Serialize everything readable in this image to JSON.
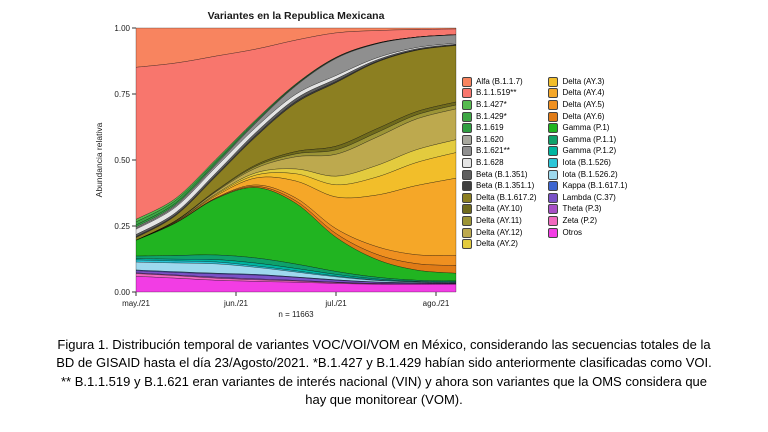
{
  "figure": {
    "caption": "Figura 1. Distribución temporal de variantes VOC/VOI/VOM en México, considerando las secuencias totales de la BD de GISAID hasta el día 23/Agosto/2021. *B.1.427 y B.1.429 habían sido anteriormente clasificadas como VOI. ** B.1.1.519 y B.1.621 eran variantes de interés nacional (VIN) y ahora son variantes que la OMS considera que hay que monitorear (VOM)."
  },
  "chart_data": {
    "type": "area",
    "variant": "stacked-normalized",
    "stack_order": "first-series-on-top",
    "title": "Variantes en la Republica Mexicana",
    "xlabel": "",
    "ylabel": "Abundancia relativa",
    "sample_label": "n = 11663",
    "x_tick_labels": [
      "may./21",
      "jun./21",
      "jul./21",
      "ago./21"
    ],
    "x_tick_positions": [
      0,
      1,
      2,
      3
    ],
    "y_tick_labels": [
      "0.00",
      "0.25",
      "0.50",
      "0.75",
      "1.00"
    ],
    "ylim": [
      0,
      1
    ],
    "grid": false,
    "legend_position": "right",
    "x": [
      0,
      0.4,
      0.8,
      1.2,
      1.6,
      2.0,
      2.4,
      2.8,
      3.2
    ],
    "series": [
      {
        "name": "Alfa (B.1.1.7)",
        "color": "#F8845F",
        "values": [
          0.15,
          0.14,
          0.12,
          0.09,
          0.05,
          0.02,
          0.01,
          0.006,
          0.004
        ]
      },
      {
        "name": "B.1.1.519**",
        "color": "#F8766D",
        "values": [
          0.58,
          0.54,
          0.44,
          0.3,
          0.18,
          0.1,
          0.05,
          0.03,
          0.022
        ]
      },
      {
        "name": "B.1.427*",
        "color": "#56BB4E",
        "values": [
          0.01,
          0.008,
          0.006,
          0.004,
          0.002,
          0.001,
          0.001,
          0.0,
          0.0
        ]
      },
      {
        "name": "B.1.429*",
        "color": "#3DA644",
        "values": [
          0.012,
          0.01,
          0.007,
          0.004,
          0.002,
          0.001,
          0.0,
          0.0,
          0.0
        ]
      },
      {
        "name": "B.1.619",
        "color": "#2F9E41",
        "values": [
          0.008,
          0.007,
          0.006,
          0.004,
          0.002,
          0.001,
          0.001,
          0.0,
          0.0
        ]
      },
      {
        "name": "B.1.620",
        "color": "#A8A89E",
        "values": [
          0.004,
          0.004,
          0.004,
          0.003,
          0.002,
          0.002,
          0.001,
          0.001,
          0.001
        ]
      },
      {
        "name": "B.1.621**",
        "color": "#8F8F8F",
        "values": [
          0.004,
          0.006,
          0.01,
          0.018,
          0.035,
          0.07,
          0.055,
          0.04,
          0.032
        ]
      },
      {
        "name": "B.1.628",
        "color": "#E4E4E4",
        "values": [
          0.02,
          0.022,
          0.025,
          0.022,
          0.018,
          0.014,
          0.008,
          0.005,
          0.004
        ]
      },
      {
        "name": "Beta (B.1.351)",
        "color": "#5E5E5E",
        "values": [
          0.008,
          0.008,
          0.01,
          0.012,
          0.012,
          0.01,
          0.006,
          0.004,
          0.003
        ]
      },
      {
        "name": "Beta (B.1.351.1)",
        "color": "#3F3F3F",
        "values": [
          0.004,
          0.004,
          0.005,
          0.006,
          0.006,
          0.005,
          0.003,
          0.002,
          0.002
        ]
      },
      {
        "name": "Delta (B.1.617.2)",
        "color": "#8C7F21",
        "values": [
          0.01,
          0.02,
          0.06,
          0.12,
          0.2,
          0.26,
          0.26,
          0.24,
          0.22
        ]
      },
      {
        "name": "Delta (AY.10)",
        "color": "#6F6A1C",
        "values": [
          0.0,
          0.001,
          0.003,
          0.006,
          0.01,
          0.015,
          0.015,
          0.013,
          0.012
        ]
      },
      {
        "name": "Delta (AY.11)",
        "color": "#9C9436",
        "values": [
          0.0,
          0.001,
          0.003,
          0.008,
          0.012,
          0.018,
          0.018,
          0.016,
          0.015
        ]
      },
      {
        "name": "Delta (AY.12)",
        "color": "#BDA94E",
        "values": [
          0.0,
          0.002,
          0.008,
          0.02,
          0.05,
          0.09,
          0.11,
          0.12,
          0.12
        ]
      },
      {
        "name": "Delta (AY.2)",
        "color": "#E3CB3E",
        "values": [
          0.0,
          0.001,
          0.004,
          0.01,
          0.02,
          0.035,
          0.045,
          0.05,
          0.05
        ]
      },
      {
        "name": "Delta (AY.3)",
        "color": "#F2BE2A",
        "values": [
          0.0,
          0.001,
          0.005,
          0.012,
          0.03,
          0.05,
          0.07,
          0.09,
          0.1
        ]
      },
      {
        "name": "Delta (AY.4)",
        "color": "#F5A728",
        "values": [
          0.0,
          0.002,
          0.008,
          0.03,
          0.07,
          0.13,
          0.2,
          0.27,
          0.3
        ]
      },
      {
        "name": "Delta (AY.5)",
        "color": "#EF9020",
        "values": [
          0.0,
          0.001,
          0.002,
          0.006,
          0.012,
          0.02,
          0.03,
          0.035,
          0.04
        ]
      },
      {
        "name": "Delta (AY.6)",
        "color": "#E07B17",
        "values": [
          0.0,
          0.001,
          0.002,
          0.005,
          0.01,
          0.015,
          0.02,
          0.025,
          0.03
        ]
      },
      {
        "name": "Gamma (P.1)",
        "color": "#21B421",
        "values": [
          0.06,
          0.13,
          0.24,
          0.3,
          0.25,
          0.14,
          0.07,
          0.04,
          0.03
        ]
      },
      {
        "name": "Gamma (P.1.1)",
        "color": "#0FA16B",
        "values": [
          0.01,
          0.015,
          0.02,
          0.022,
          0.018,
          0.012,
          0.007,
          0.004,
          0.003
        ]
      },
      {
        "name": "Gamma (P.1.2)",
        "color": "#00B5A0",
        "values": [
          0.005,
          0.007,
          0.01,
          0.012,
          0.01,
          0.007,
          0.004,
          0.002,
          0.002
        ]
      },
      {
        "name": "Iota (B.1.526)",
        "color": "#2BC6D8",
        "values": [
          0.008,
          0.008,
          0.008,
          0.006,
          0.005,
          0.003,
          0.002,
          0.001,
          0.001
        ]
      },
      {
        "name": "Iota (B.1.526.2)",
        "color": "#9ED9EE",
        "values": [
          0.03,
          0.035,
          0.04,
          0.03,
          0.02,
          0.012,
          0.006,
          0.003,
          0.002
        ]
      },
      {
        "name": "Kappa (B.1.617.1)",
        "color": "#3E66D0",
        "values": [
          0.003,
          0.003,
          0.003,
          0.003,
          0.002,
          0.002,
          0.001,
          0.001,
          0.001
        ]
      },
      {
        "name": "Lambda (C.37)",
        "color": "#7A52C7",
        "values": [
          0.008,
          0.01,
          0.014,
          0.016,
          0.012,
          0.008,
          0.005,
          0.003,
          0.002
        ]
      },
      {
        "name": "Theta (P.3)",
        "color": "#A74FC6",
        "values": [
          0.003,
          0.003,
          0.004,
          0.004,
          0.003,
          0.002,
          0.001,
          0.001,
          0.001
        ]
      },
      {
        "name": "Zeta (P.2)",
        "color": "#F06ABF",
        "values": [
          0.01,
          0.01,
          0.009,
          0.007,
          0.005,
          0.003,
          0.002,
          0.001,
          0.001
        ]
      },
      {
        "name": "Otros",
        "color": "#F23DE4",
        "values": [
          0.06,
          0.055,
          0.05,
          0.045,
          0.04,
          0.035,
          0.03,
          0.03,
          0.03
        ]
      }
    ]
  }
}
